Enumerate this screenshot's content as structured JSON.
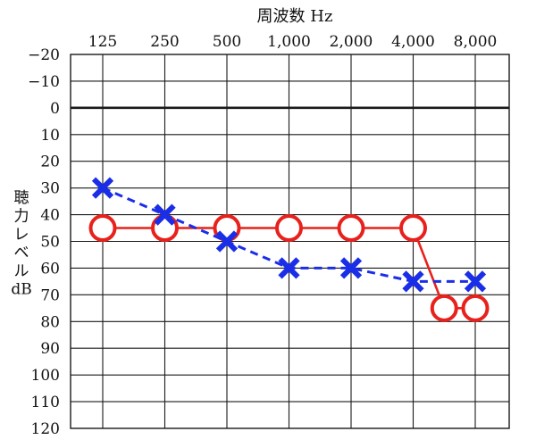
{
  "chart_data": {
    "type": "line",
    "title": "",
    "xlabel": "周波数 Hz",
    "ylabel_lines": [
      "聴",
      "力",
      "レ",
      "ベ",
      "ル",
      "dB"
    ],
    "x_tick_labels": [
      "125",
      "250",
      "500",
      "1,000",
      "2,000",
      "4,000",
      "8,000"
    ],
    "x_values": [
      125,
      250,
      500,
      1000,
      2000,
      4000,
      8000
    ],
    "y_tick_labels": [
      "−20",
      "−10",
      "0",
      "10",
      "20",
      "30",
      "40",
      "50",
      "60",
      "70",
      "80",
      "90",
      "100",
      "110",
      "120"
    ],
    "ylim": [
      -20,
      120
    ],
    "y_inverted": true,
    "grid": true,
    "series": [
      {
        "marker": "circle",
        "line": "solid",
        "color": "#e8211c",
        "points": [
          {
            "x": 125,
            "y": 45
          },
          {
            "x": 250,
            "y": 45
          },
          {
            "x": 500,
            "y": 45
          },
          {
            "x": 1000,
            "y": 45
          },
          {
            "x": 2000,
            "y": 45
          },
          {
            "x": 4000,
            "y": 45
          },
          {
            "x": 5657,
            "y": 75
          },
          {
            "x": 8000,
            "y": 75
          }
        ]
      },
      {
        "marker": "cross",
        "line": "dashed",
        "color": "#1a2ee8",
        "points": [
          {
            "x": 125,
            "y": 30
          },
          {
            "x": 250,
            "y": 40
          },
          {
            "x": 500,
            "y": 50
          },
          {
            "x": 1000,
            "y": 60
          },
          {
            "x": 2000,
            "y": 60
          },
          {
            "x": 4000,
            "y": 65
          },
          {
            "x": 8000,
            "y": 65
          }
        ]
      }
    ]
  }
}
